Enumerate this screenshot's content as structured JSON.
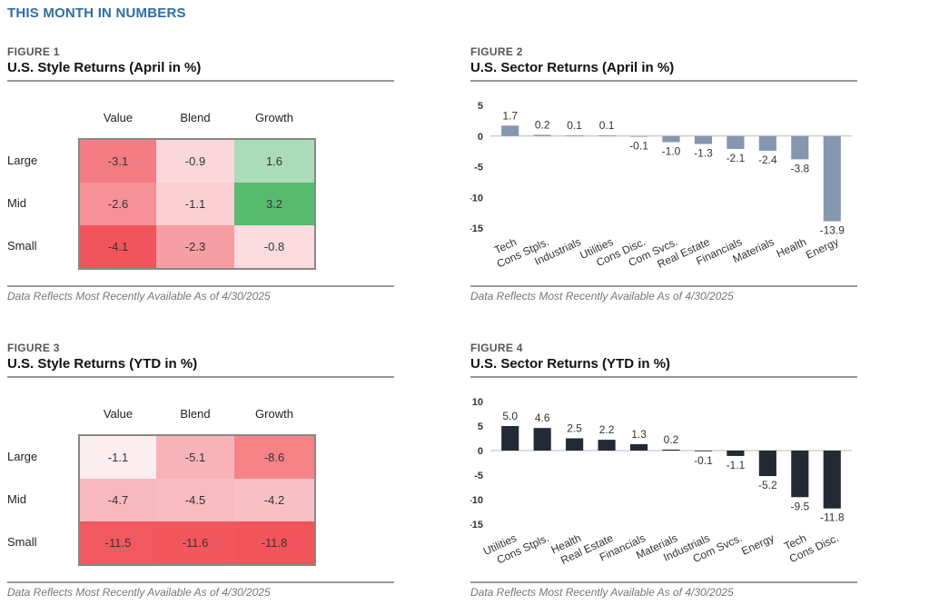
{
  "page_title": "THIS MONTH IN NUMBERS",
  "footnote": "Data Reflects Most Recently Available As of 4/30/2025",
  "colors": {
    "title_blue": "#2e6da4",
    "bar_april": "#8497b0",
    "bar_ytd": "#222a35",
    "heat_red": "#f2545b",
    "heat_green": "#57bb6e"
  },
  "chart_data": [
    {
      "id": "figure1",
      "type": "heatmap",
      "figure_label": "FIGURE 1",
      "title": "U.S. Style Returns (April in %)",
      "columns": [
        "Value",
        "Blend",
        "Growth"
      ],
      "rows": [
        "Large",
        "Mid",
        "Small"
      ],
      "values": [
        [
          -3.1,
          -0.9,
          1.6
        ],
        [
          -2.6,
          -1.1,
          3.2
        ],
        [
          -4.1,
          -2.3,
          -0.8
        ]
      ],
      "labels": [
        [
          "-3.1",
          "-0.9",
          "1.6"
        ],
        [
          "-2.6",
          "-1.1",
          "3.2"
        ],
        [
          "-4.1",
          "-2.3",
          "-0.8"
        ]
      ]
    },
    {
      "id": "figure2",
      "type": "bar",
      "figure_label": "FIGURE 2",
      "title": "U.S. Sector Returns (April in %)",
      "categories": [
        "Tech",
        "Cons Stpls.",
        "Industrials",
        "Utilities",
        "Cons Disc.",
        "Com Svcs.",
        "Real Estate",
        "Financials",
        "Materials",
        "Health",
        "Energy"
      ],
      "values": [
        1.7,
        0.2,
        0.1,
        0.1,
        -0.1,
        -1.0,
        -1.3,
        -2.1,
        -2.4,
        -3.8,
        -13.9
      ],
      "labels": [
        "1.7",
        "0.2",
        "0.1",
        "0.1",
        "-0.1",
        "-1.0",
        "-1.3",
        "-2.1",
        "-2.4",
        "-3.8",
        "-13.9"
      ],
      "ylim": [
        -15,
        5
      ],
      "yticks": [
        5,
        0,
        -5,
        -10,
        -15
      ],
      "ytick_labels": [
        "5",
        "0",
        "-5",
        "-10",
        "-15"
      ],
      "grid": false
    },
    {
      "id": "figure3",
      "type": "heatmap",
      "figure_label": "FIGURE 3",
      "title": "U.S. Style Returns (YTD in %)",
      "columns": [
        "Value",
        "Blend",
        "Growth"
      ],
      "rows": [
        "Large",
        "Mid",
        "Small"
      ],
      "values": [
        [
          -1.1,
          -5.1,
          -8.6
        ],
        [
          -4.7,
          -4.5,
          -4.2
        ],
        [
          -11.5,
          -11.6,
          -11.8
        ]
      ],
      "labels": [
        [
          "-1.1",
          "-5.1",
          "-8.6"
        ],
        [
          "-4.7",
          "-4.5",
          "-4.2"
        ],
        [
          "-11.5",
          "-11.6",
          "-11.8"
        ]
      ]
    },
    {
      "id": "figure4",
      "type": "bar",
      "figure_label": "FIGURE 4",
      "title": "U.S. Sector Returns (YTD in %)",
      "categories": [
        "Utilities",
        "Cons Stpls.",
        "Health",
        "Real Estate",
        "Financials",
        "Materials",
        "Industrials",
        "Com Svcs.",
        "Energy",
        "Tech",
        "Cons Disc."
      ],
      "values": [
        5.0,
        4.6,
        2.5,
        2.2,
        1.3,
        0.2,
        -0.1,
        -1.1,
        -5.2,
        -9.5,
        -11.8
      ],
      "labels": [
        "5.0",
        "4.6",
        "2.5",
        "2.2",
        "1.3",
        "0.2",
        "-0.1",
        "-1.1",
        "-5.2",
        "-9.5",
        "-11.8"
      ],
      "ylim": [
        -15,
        10
      ],
      "yticks": [
        10,
        5,
        0,
        -5,
        -10,
        -15
      ],
      "ytick_labels": [
        "10",
        "5",
        "0",
        "-5",
        "-10",
        "-15"
      ],
      "grid": false
    }
  ]
}
